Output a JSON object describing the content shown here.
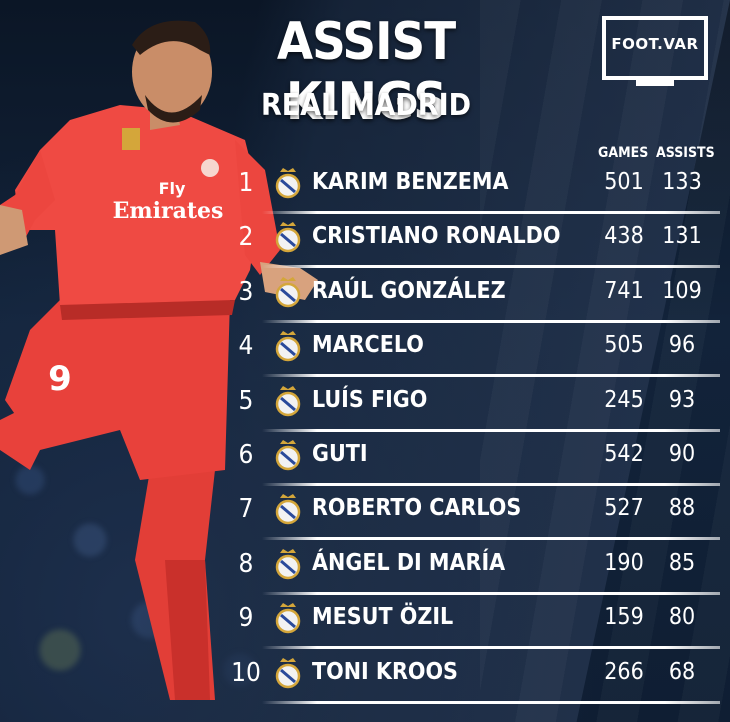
{
  "title": "ASSIST KINGS",
  "subtitle": "REAL MADRID",
  "logo": "FOOT.VAR",
  "columns": {
    "games": "GAMES",
    "assists": "ASSISTS"
  },
  "players": [
    {
      "rank": "1",
      "name": "KARIM BENZEMA",
      "games": "501",
      "assists": "133"
    },
    {
      "rank": "2",
      "name": "CRISTIANO RONALDO",
      "games": "438",
      "assists": "131"
    },
    {
      "rank": "3",
      "name": "RAÚL GONZÁLEZ",
      "games": "741",
      "assists": "109"
    },
    {
      "rank": "4",
      "name": "MARCELO",
      "games": "505",
      "assists": "96"
    },
    {
      "rank": "5",
      "name": "LUÍS FIGO",
      "games": "245",
      "assists": "93"
    },
    {
      "rank": "6",
      "name": "GUTI",
      "games": "542",
      "assists": "90"
    },
    {
      "rank": "7",
      "name": "ROBERTO CARLOS",
      "games": "527",
      "assists": "88"
    },
    {
      "rank": "8",
      "name": "ÁNGEL DI MARÍA",
      "games": "190",
      "assists": "85"
    },
    {
      "rank": "9",
      "name": "MESUT ÖZIL",
      "games": "159",
      "assists": "80"
    },
    {
      "rank": "10",
      "name": "TONI KROOS",
      "games": "266",
      "assists": "68"
    }
  ],
  "shirt": {
    "sponsor_line1": "Fly",
    "sponsor_line2": "Emirates",
    "number": "9"
  },
  "colors": {
    "kit": "#e8413b",
    "background": "#0d1b2e",
    "crest_gold": "#d4a63a"
  },
  "icons": {
    "club_crest": "real-madrid-crest-icon"
  }
}
